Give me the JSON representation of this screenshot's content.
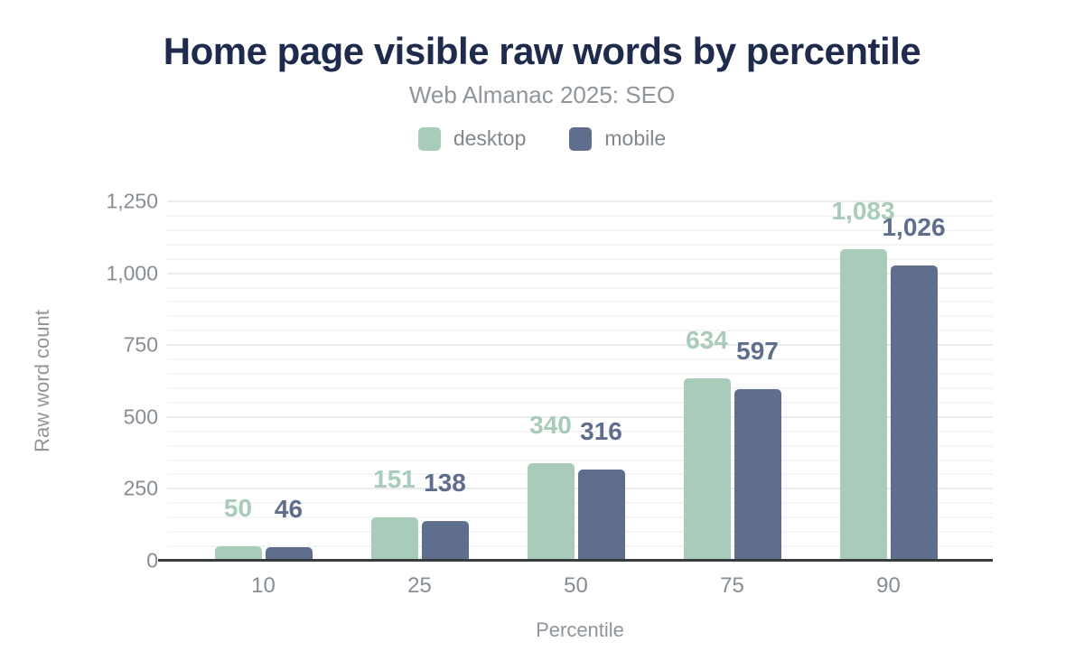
{
  "header": {
    "title": "Home page visible raw words by percentile",
    "subtitle": "Web Almanac 2025: SEO"
  },
  "legend": {
    "items": [
      {
        "label": "desktop",
        "color": "#a9ccba"
      },
      {
        "label": "mobile",
        "color": "#5f6e8c"
      }
    ]
  },
  "axes": {
    "x_title": "Percentile",
    "y_title": "Raw word count",
    "y_tick_labels": [
      "0",
      "250",
      "500",
      "750",
      "1,000",
      "1,250"
    ],
    "y_tick_values": [
      0,
      250,
      500,
      750,
      1000,
      1250
    ]
  },
  "chart_data": {
    "type": "bar",
    "title": "Home page visible raw words by percentile",
    "subtitle": "Web Almanac 2025: SEO",
    "categories": [
      "10",
      "25",
      "50",
      "75",
      "90"
    ],
    "series": [
      {
        "name": "desktop",
        "color": "#a9ccba",
        "values": [
          50,
          151,
          340,
          634,
          1083
        ],
        "labels": [
          "50",
          "151",
          "340",
          "634",
          "1,083"
        ]
      },
      {
        "name": "mobile",
        "color": "#5f6e8c",
        "values": [
          46,
          138,
          316,
          597,
          1026
        ],
        "labels": [
          "46",
          "138",
          "316",
          "597",
          "1,026"
        ]
      }
    ],
    "xlabel": "Percentile",
    "ylabel": "Raw word count",
    "ylim": [
      0,
      1250
    ],
    "grid": true,
    "minor_grid_step": 50,
    "major_grid_step": 250,
    "legend_position": "top"
  },
  "colors": {
    "title": "#1f2b4c",
    "subtitle": "#8f959b",
    "tick_text": "#878d94",
    "axis_line": "#3a3b3f",
    "major_gridline": "#ececee",
    "minor_gridline": "#f5f5f6",
    "background": "#ffffff"
  }
}
